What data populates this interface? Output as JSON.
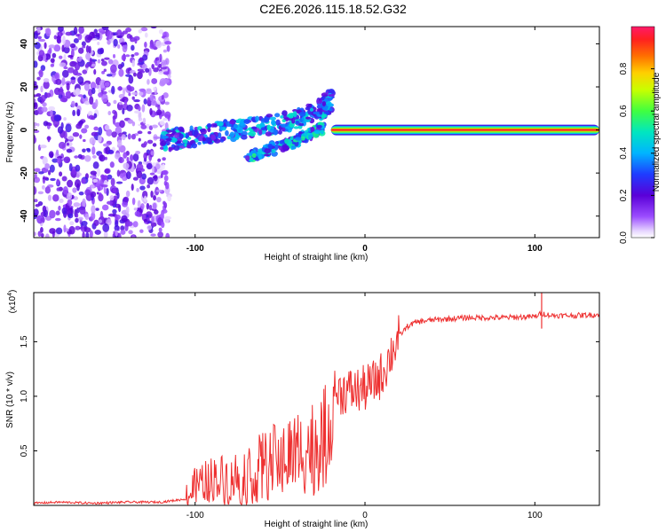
{
  "title": "C2E6.2026.115.18.52.G32",
  "chart_data": [
    {
      "type": "heatmap",
      "xlabel": "Height of straight line (km)",
      "ylabel": "Frequency (Hz)",
      "xlim": [
        -195,
        138
      ],
      "ylim": [
        -50,
        48
      ],
      "x_ticks": [
        -100,
        0,
        100
      ],
      "y_ticks": [
        -40,
        -20,
        0,
        20,
        40
      ],
      "colorbar": {
        "label": "Normalized spectral amplitude",
        "range": [
          0,
          1
        ],
        "ticks": [
          0.0,
          0.2,
          0.4,
          0.6,
          0.8
        ],
        "tick_labels": [
          "0.0",
          "0.2",
          "0.4",
          "0.6",
          "0.8"
        ]
      },
      "features": [
        {
          "name": "noise",
          "x_range": [
            -195,
            -115
          ],
          "y_range": [
            -50,
            48
          ],
          "amplitude": 0.15
        },
        {
          "name": "main-branch",
          "points": [
            [
              -120,
              -5
            ],
            [
              -100,
              -3
            ],
            [
              -80,
              0
            ],
            [
              -60,
              2
            ],
            [
              -40,
              5
            ],
            [
              -25,
              10
            ],
            [
              -20,
              14
            ]
          ],
          "amplitude": 0.4
        },
        {
          "name": "lower-branch",
          "points": [
            [
              -70,
              -13
            ],
            [
              -55,
              -9
            ],
            [
              -40,
              -5
            ],
            [
              -30,
              -1
            ],
            [
              -25,
              1
            ]
          ],
          "amplitude": 0.45
        },
        {
          "name": "stable-tone",
          "x_range": [
            -20,
            138
          ],
          "y": 0,
          "amplitude": 1.0
        }
      ]
    },
    {
      "type": "line",
      "xlabel": "Height of straight line (km)",
      "ylabel": "SNR (10 * v/v)",
      "y_multiplier": "(x10",
      "y_multiplier_exp": "4",
      "y_multiplier_close": ")",
      "xlim": [
        -195,
        138
      ],
      "ylim": [
        0,
        1.95
      ],
      "x_ticks": [
        -100,
        0,
        100
      ],
      "y_ticks": [
        0.5,
        1.0,
        1.5
      ],
      "y_tick_labels": [
        "0.5",
        "1.0",
        "1.5"
      ],
      "color": "#ee3030",
      "series": [
        {
          "name": "SNR",
          "x": [
            -195,
            -180,
            -160,
            -140,
            -120,
            -105,
            -100,
            -90,
            -80,
            -70,
            -60,
            -50,
            -40,
            -30,
            -22,
            -18,
            -12,
            -5,
            0,
            5,
            10,
            15,
            20,
            25,
            30,
            40,
            60,
            80,
            100,
            104,
            110,
            125,
            138
          ],
          "y": [
            0.02,
            0.03,
            0.02,
            0.03,
            0.03,
            0.06,
            0.18,
            0.25,
            0.24,
            0.28,
            0.35,
            0.42,
            0.5,
            0.55,
            0.65,
            1.02,
            1.05,
            1.05,
            1.07,
            1.12,
            1.2,
            1.38,
            1.55,
            1.64,
            1.68,
            1.7,
            1.72,
            1.72,
            1.73,
            1.76,
            1.74,
            1.74,
            1.75
          ]
        }
      ]
    }
  ]
}
